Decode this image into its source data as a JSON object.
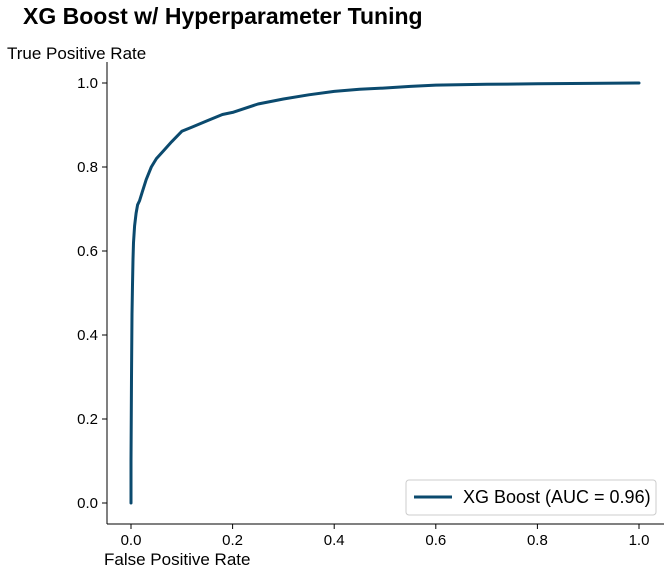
{
  "chart_data": {
    "type": "line",
    "title": "XG Boost w/ Hyperparameter Tuning",
    "xlabel": "False Positive Rate",
    "ylabel": "True Positive Rate",
    "xlim": [
      0.0,
      1.0
    ],
    "ylim": [
      0.0,
      1.0
    ],
    "xticks": [
      "0.0",
      "0.2",
      "0.4",
      "0.6",
      "0.8",
      "1.0"
    ],
    "yticks": [
      "0.0",
      "0.2",
      "0.4",
      "0.6",
      "0.8",
      "1.0"
    ],
    "grid": false,
    "legend_position": "lower-right",
    "series": [
      {
        "name": "XG Boost (AUC = 0.96)",
        "color": "#0b4a6e",
        "x": [
          0.0,
          0.0,
          0.001,
          0.002,
          0.003,
          0.004,
          0.005,
          0.007,
          0.01,
          0.013,
          0.017,
          0.022,
          0.03,
          0.04,
          0.05,
          0.065,
          0.08,
          0.1,
          0.12,
          0.15,
          0.18,
          0.2,
          0.25,
          0.3,
          0.35,
          0.4,
          0.45,
          0.5,
          0.55,
          0.6,
          0.7,
          0.8,
          0.9,
          1.0
        ],
        "y": [
          0.0,
          0.1,
          0.3,
          0.45,
          0.52,
          0.58,
          0.62,
          0.66,
          0.69,
          0.71,
          0.72,
          0.74,
          0.77,
          0.8,
          0.82,
          0.84,
          0.86,
          0.885,
          0.895,
          0.91,
          0.925,
          0.93,
          0.95,
          0.962,
          0.972,
          0.98,
          0.985,
          0.988,
          0.992,
          0.995,
          0.997,
          0.998,
          0.999,
          1.0
        ]
      }
    ]
  }
}
